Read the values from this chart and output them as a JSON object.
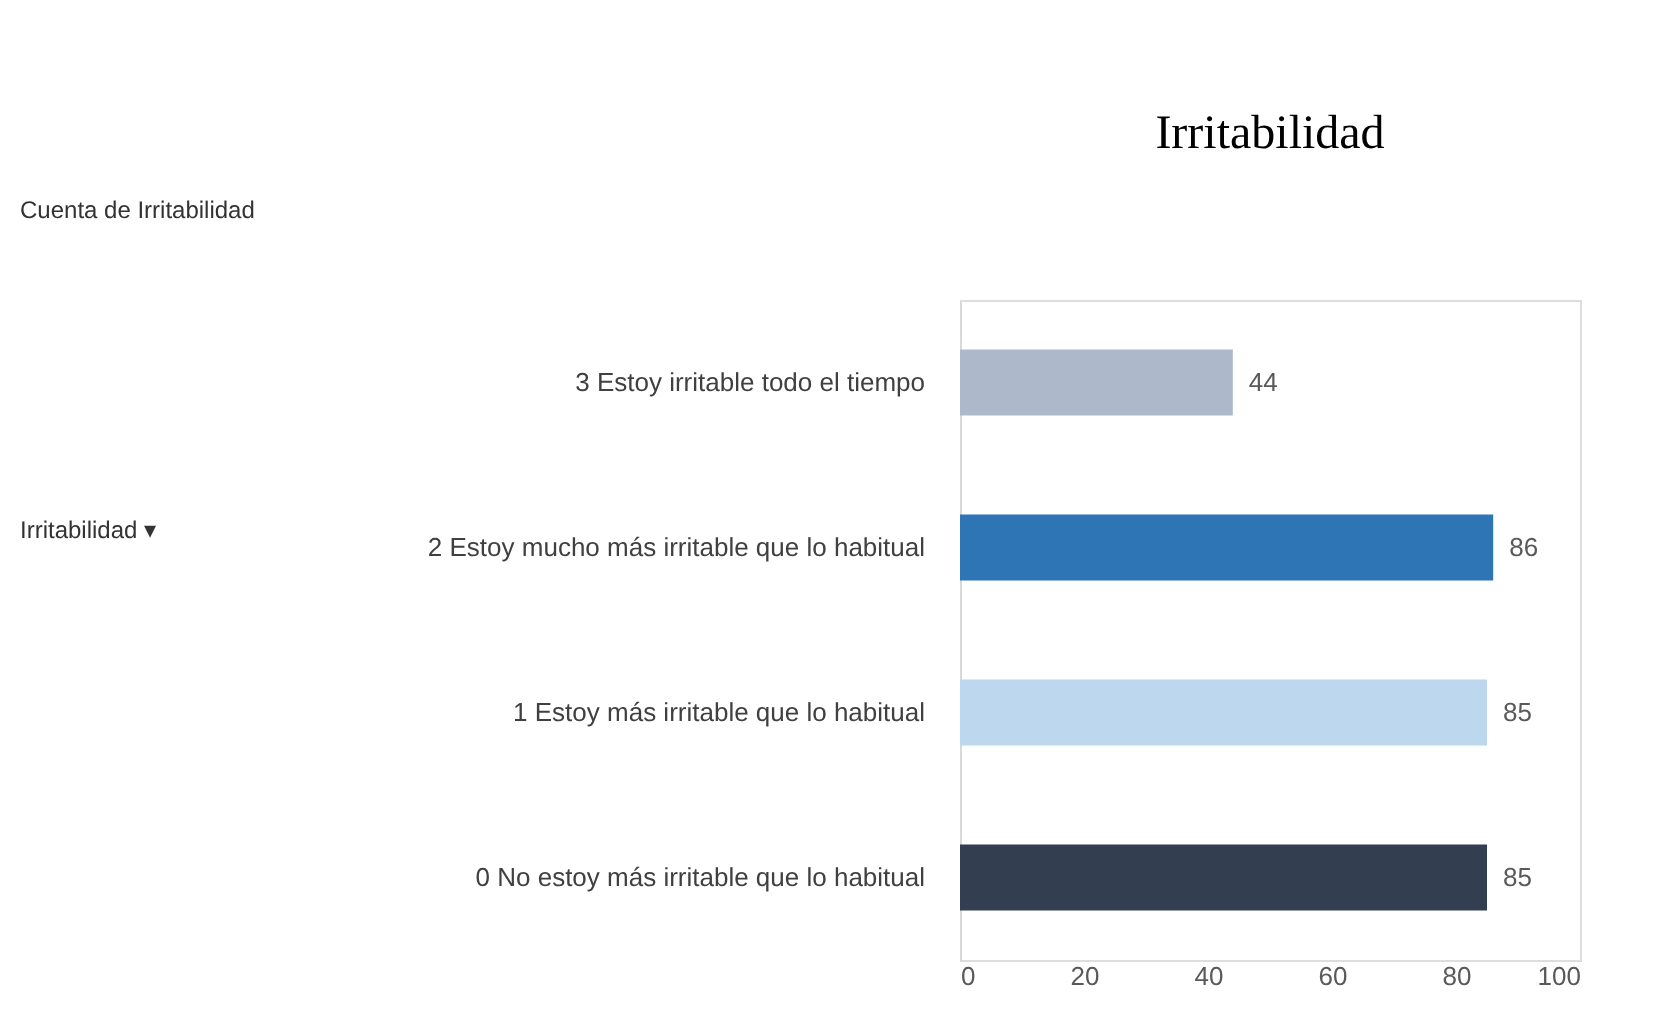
{
  "chart_data": {
    "type": "bar",
    "orientation": "horizontal",
    "title": "Irritabilidad",
    "categories": [
      "3  Estoy irritable todo el tiempo",
      "2  Estoy mucho más irritable que lo habitual",
      "1  Estoy  más irritable que lo habitual",
      "0  No estoy más irritable que lo habitual"
    ],
    "values": [
      44,
      86,
      85,
      85
    ],
    "colors": [
      "#adb9ca",
      "#2e75b6",
      "#bdd7ee",
      "#333f50"
    ],
    "xlim": [
      0,
      100
    ],
    "xticks": [
      0,
      20,
      40,
      60,
      80,
      100
    ],
    "grid": false,
    "data_labels": true,
    "annotations": [
      "Cuenta de Irritabilidad",
      "Irritabilidad ▾"
    ]
  }
}
